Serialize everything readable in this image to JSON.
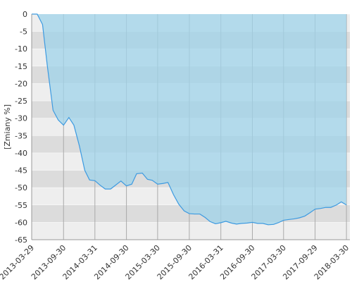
{
  "chart_data": {
    "type": "area",
    "ylabel": "[Zmiany %]",
    "x": [
      "2013-03-29",
      "2013-04-30",
      "2013-05-31",
      "2013-06-28",
      "2013-07-31",
      "2013-08-30",
      "2013-09-30",
      "2013-10-31",
      "2013-11-29",
      "2013-12-31",
      "2014-01-31",
      "2014-02-28",
      "2014-03-31",
      "2014-04-30",
      "2014-05-30",
      "2014-06-30",
      "2014-07-31",
      "2014-08-29",
      "2014-09-30",
      "2014-10-31",
      "2014-11-28",
      "2014-12-31",
      "2015-01-30",
      "2015-02-27",
      "2015-03-30",
      "2015-04-30",
      "2015-05-29",
      "2015-06-30",
      "2015-07-31",
      "2015-08-31",
      "2015-09-30",
      "2015-10-30",
      "2015-11-30",
      "2015-12-31",
      "2016-01-29",
      "2016-02-29",
      "2016-03-31",
      "2016-04-29",
      "2016-05-31",
      "2016-06-30",
      "2016-07-29",
      "2016-08-31",
      "2016-09-30",
      "2016-10-31",
      "2016-11-30",
      "2016-12-30",
      "2017-01-31",
      "2017-02-28",
      "2017-03-30",
      "2017-04-28",
      "2017-05-31",
      "2017-06-30",
      "2017-07-31",
      "2017-08-31",
      "2017-09-29",
      "2017-10-31",
      "2017-11-30",
      "2017-12-29",
      "2018-01-31",
      "2018-02-28",
      "2018-03-30"
    ],
    "values": [
      0,
      0,
      -3,
      -15,
      -27.7,
      -30.5,
      -32,
      -29.8,
      -32,
      -38,
      -45,
      -47.8,
      -48,
      -49.3,
      -50.4,
      -50.4,
      -49.2,
      -48.1,
      -49.5,
      -49,
      -46,
      -45.8,
      -47.6,
      -47.9,
      -49,
      -48.8,
      -48.5,
      -52,
      -54.8,
      -56.7,
      -57.5,
      -57.6,
      -57.6,
      -58.6,
      -59.8,
      -60.4,
      -60.1,
      -59.7,
      -60.2,
      -60.5,
      -60.3,
      -60.2,
      -60,
      -60.3,
      -60.3,
      -60.7,
      -60.6,
      -60.1,
      -59.4,
      -59.2,
      -59,
      -58.7,
      -58.2,
      -57.2,
      -56.2,
      -56,
      -55.7,
      -55.7,
      -55,
      -54.1,
      -55
    ],
    "color": "#3d9ae0",
    "fill_color": "#9fd3ea",
    "band_colors": [
      "#eeeeee",
      "#dcdcdc"
    ],
    "xlim": [
      "2013-03-29",
      "2018-04-19"
    ],
    "xticks": [
      "2013-03-29",
      "2013-09-30",
      "2014-03-31",
      "2014-09-30",
      "2015-03-30",
      "2015-09-30",
      "2016-03-31",
      "2016-09-30",
      "2017-03-30",
      "2017-09-29",
      "2018-03-30"
    ],
    "ylim": [
      -65,
      0
    ],
    "yticks": [
      0,
      -5,
      -10,
      -15,
      -20,
      -25,
      -30,
      -35,
      -40,
      -45,
      -50,
      -55,
      -60,
      -65
    ],
    "grid": true
  }
}
